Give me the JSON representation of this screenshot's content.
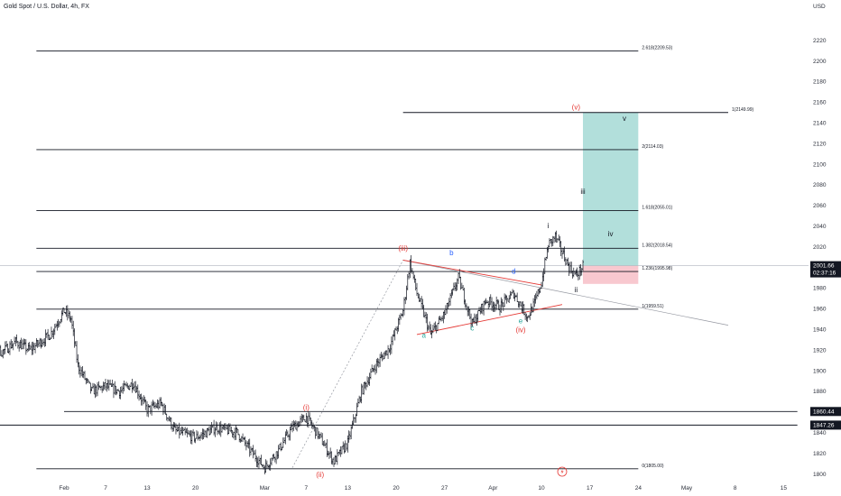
{
  "header": {
    "title": "Gold Spot / U.S. Dollar, 4h, FX",
    "currency": "USD"
  },
  "chart_data": {
    "type": "candlestick",
    "title": "Gold Spot / U.S. Dollar, 4h, FX",
    "ylabel": "USD",
    "ylim": [
      1796,
      2242
    ],
    "y_ticks": [
      1800,
      1820,
      1840,
      1860,
      1880,
      1900,
      1920,
      1940,
      1960,
      1980,
      2000,
      2020,
      2040,
      2060,
      2080,
      2100,
      2120,
      2140,
      2160,
      2180,
      2200,
      2220
    ],
    "x_ticks": [
      "Feb",
      "7",
      "13",
      "20",
      "Mar",
      "7",
      "13",
      "20",
      "27",
      "Apr",
      "10",
      "17",
      "24",
      "May",
      "8",
      "15"
    ],
    "x_dates": [
      "2024-02-01",
      "2024-02-07",
      "2024-02-13",
      "2024-02-20",
      "2024-03-01",
      "2024-03-07",
      "2024-03-13",
      "2024-03-20",
      "2024-03-27",
      "2024-04-03",
      "2024-04-10",
      "2024-04-17",
      "2024-04-24",
      "2024-05-01",
      "2024-05-08",
      "2024-05-15"
    ],
    "price_path": [
      [
        "2024-01-18",
        1912
      ],
      [
        "2024-01-20",
        1930
      ],
      [
        "2024-01-23",
        1918
      ],
      [
        "2024-01-25",
        1928
      ],
      [
        "2024-01-27",
        1920
      ],
      [
        "2024-01-30",
        1935
      ],
      [
        "2024-02-01",
        1958
      ],
      [
        "2024-02-02",
        1950
      ],
      [
        "2024-02-03",
        1905
      ],
      [
        "2024-02-05",
        1880
      ],
      [
        "2024-02-07",
        1885
      ],
      [
        "2024-02-09",
        1880
      ],
      [
        "2024-02-11",
        1888
      ],
      [
        "2024-02-13",
        1862
      ],
      [
        "2024-02-15",
        1868
      ],
      [
        "2024-02-17",
        1842
      ],
      [
        "2024-02-20",
        1835
      ],
      [
        "2024-02-23",
        1845
      ],
      [
        "2024-02-26",
        1840
      ],
      [
        "2024-02-28",
        1822
      ],
      [
        "2024-03-01",
        1806
      ],
      [
        "2024-03-03",
        1823
      ],
      [
        "2024-03-05",
        1845
      ],
      [
        "2024-03-07",
        1855
      ],
      [
        "2024-03-09",
        1835
      ],
      [
        "2024-03-11",
        1812
      ],
      [
        "2024-03-13",
        1830
      ],
      [
        "2024-03-15",
        1880
      ],
      [
        "2024-03-17",
        1905
      ],
      [
        "2024-03-19",
        1922
      ],
      [
        "2024-03-21",
        1958
      ],
      [
        "2024-03-22",
        2005
      ],
      [
        "2024-03-23",
        1975
      ],
      [
        "2024-03-24",
        1955
      ],
      [
        "2024-03-25",
        1935
      ],
      [
        "2024-03-27",
        1955
      ],
      [
        "2024-03-29",
        1990
      ],
      [
        "2024-03-31",
        1945
      ],
      [
        "2024-04-02",
        1968
      ],
      [
        "2024-04-04",
        1962
      ],
      [
        "2024-04-06",
        1975
      ],
      [
        "2024-04-08",
        1952
      ],
      [
        "2024-04-09",
        1965
      ],
      [
        "2024-04-10",
        1985
      ],
      [
        "2024-04-11",
        2022
      ],
      [
        "2024-04-12",
        2030
      ],
      [
        "2024-04-13",
        2015
      ],
      [
        "2024-04-14",
        2000
      ],
      [
        "2024-04-15",
        1992
      ],
      [
        "2024-04-16",
        2001
      ]
    ],
    "horizontal_levels": [
      {
        "price": 2209.53,
        "label": "2.618(2209.53)"
      },
      {
        "price": 2149.99,
        "label": "1(2149.99)"
      },
      {
        "price": 2114.03,
        "label": "2(2114.03)"
      },
      {
        "price": 2055.01,
        "label": "1.618(2055.01)"
      },
      {
        "price": 2018.54,
        "label": "1.382(2018.54)"
      },
      {
        "price": 1995.98,
        "label": "1.236(1995.98)"
      },
      {
        "price": 1959.51,
        "label": "1(1959.51)"
      },
      {
        "price": 1860.44,
        "label": ""
      },
      {
        "price": 1847.26,
        "label": ""
      },
      {
        "price": 1805.0,
        "label": "0(1805.00)"
      }
    ],
    "price_badges": [
      {
        "price": 2001.66,
        "label": "2001.66",
        "sublabel": "02:37:16",
        "color": "#131722"
      },
      {
        "price": 1860.44,
        "label": "1860.44",
        "color": "#131722"
      },
      {
        "price": 1847.26,
        "label": "1847.26",
        "color": "#131722"
      }
    ],
    "wave_labels": [
      {
        "label": "(i)",
        "date": "2024-03-07",
        "price": 1862,
        "color": "#e53935"
      },
      {
        "label": "(ii)",
        "date": "2024-03-09",
        "price": 1797,
        "color": "#e53935"
      },
      {
        "label": "(iii)",
        "date": "2024-03-21",
        "price": 2016,
        "color": "#e53935"
      },
      {
        "label": "(iv)",
        "date": "2024-04-07",
        "price": 1937,
        "color": "#e53935"
      },
      {
        "label": "(v)",
        "date": "2024-04-15",
        "price": 2153,
        "color": "#e53935"
      },
      {
        "label": "a",
        "date": "2024-03-24",
        "price": 1932,
        "color": "#26a69a"
      },
      {
        "label": "b",
        "date": "2024-03-28",
        "price": 2012,
        "color": "#2962ff"
      },
      {
        "label": "c",
        "date": "2024-03-31",
        "price": 1939,
        "color": "#26a69a"
      },
      {
        "label": "d",
        "date": "2024-04-06",
        "price": 1994,
        "color": "#2962ff"
      },
      {
        "label": "e",
        "date": "2024-04-07",
        "price": 1946,
        "color": "#26a69a"
      },
      {
        "label": "i",
        "date": "2024-04-11",
        "price": 2038,
        "color": "#131722"
      },
      {
        "label": "ii",
        "date": "2024-04-15",
        "price": 1976,
        "color": "#131722"
      },
      {
        "label": "iii",
        "date": "2024-04-16",
        "price": 2071,
        "color": "#131722"
      },
      {
        "label": "iv",
        "date": "2024-04-20",
        "price": 2030,
        "color": "#131722"
      },
      {
        "label": "v",
        "date": "2024-04-22",
        "price": 2142,
        "color": "#131722"
      }
    ],
    "position": {
      "entry": 2001.66,
      "target": 2149.99,
      "stop": 1984,
      "profit_color": "#b2dfdb",
      "loss_color": "#f8c8cf"
    },
    "colors": {
      "up": "#131722",
      "down": "#131722",
      "trend_red": "#e53935",
      "trend_grey": "#9598a1",
      "line": "#131722"
    }
  }
}
